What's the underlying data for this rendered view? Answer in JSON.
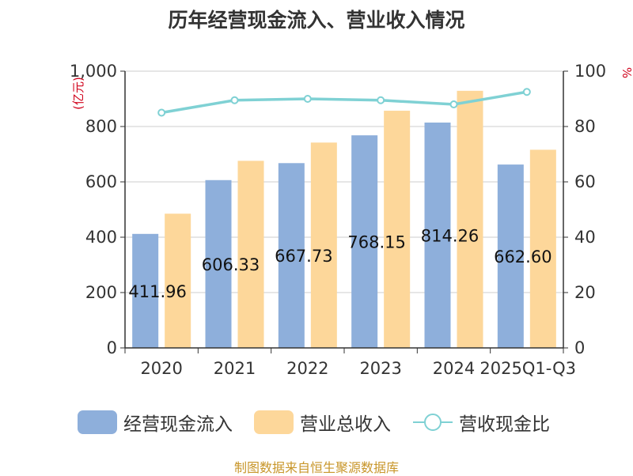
{
  "colors": {
    "cash_inflow": "#8eafdb",
    "revenue": "#fdd79a",
    "ratio": "#7fd1d4",
    "source_text": "#c8962a",
    "unit_text": "#d0021b"
  },
  "chart_data": {
    "type": "bar",
    "title": "历年经营现金流入、营业收入情况",
    "categories": [
      "2020",
      "2021",
      "2022",
      "2023",
      "2024",
      "2025Q1-Q3"
    ],
    "left_axis": {
      "unit": "(亿元)",
      "ylim": [
        0,
        1000
      ],
      "ticks": [
        "0",
        "200",
        "400",
        "600",
        "800",
        "1,000"
      ]
    },
    "right_axis": {
      "unit": "%",
      "ylim": [
        0,
        100
      ],
      "ticks": [
        "0",
        "20",
        "40",
        "60",
        "80",
        "100"
      ]
    },
    "grid": true,
    "legend_position": "bottom",
    "series": [
      {
        "name": "经营现金流入",
        "type": "bar",
        "axis": "left",
        "values": [
          411.96,
          606.33,
          667.73,
          768.15,
          814.26,
          662.6
        ],
        "labels": [
          "411.96",
          "606.33",
          "667.73",
          "768.15",
          "814.26",
          "662.60"
        ]
      },
      {
        "name": "营业总收入",
        "type": "bar",
        "axis": "left",
        "values": [
          485,
          676,
          742,
          857,
          929,
          716
        ]
      },
      {
        "name": "营收现金比",
        "type": "line",
        "axis": "right",
        "values": [
          85,
          89.5,
          90,
          89.5,
          88,
          92.5
        ]
      }
    ]
  },
  "legend": [
    {
      "label": "经营现金流入"
    },
    {
      "label": "营业总收入"
    },
    {
      "label": "营收现金比"
    }
  ],
  "source": "制图数据来自恒生聚源数据库"
}
